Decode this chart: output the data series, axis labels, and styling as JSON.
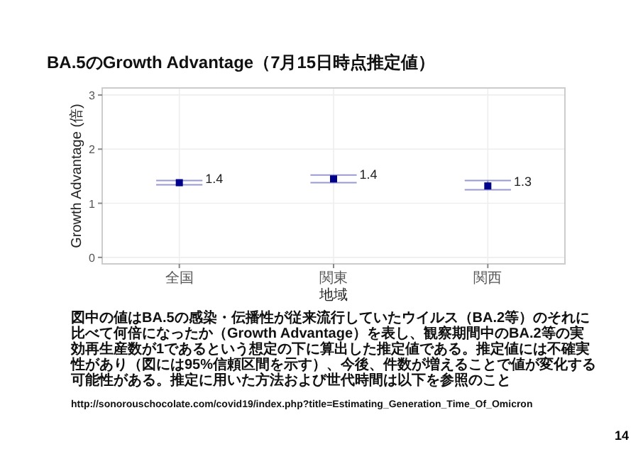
{
  "chart_data": {
    "type": "scatter",
    "title": "BA.5のGrowth Advantage（7月15日時点推定値）",
    "xlabel": "地域",
    "ylabel": "Growth Advantage (倍)",
    "categories": [
      "全国",
      "関東",
      "関西"
    ],
    "series": [
      {
        "color": "#00008b",
        "values": [
          1.38,
          1.45,
          1.32
        ],
        "errors": [
          [
            1.34,
            1.42
          ],
          [
            1.38,
            1.52
          ],
          [
            1.25,
            1.42
          ]
        ],
        "value_labels": [
          "1.4",
          "1.4",
          "1.3"
        ]
      }
    ],
    "ylim": [
      -0.12,
      3.13
    ],
    "yticks": [
      0,
      1,
      2,
      3
    ],
    "grid": true,
    "marker": "square",
    "annotations": [
      "図中の値はBA.5の感染・伝播性が従来流行していたウイルス（BA.2等）のそれに比べて何倍になったか（Growth Advantage）を表し、観察期間中のBA.2等の実効再生産数が1であるという想定の下に算出した推定値である。推定値には不確実性があり（図には95%信頼区間を示す）、今後、件数が増えることで値が変化する可能性がある。推定に用いた方法および世代時間は以下を参照のこと",
      "http://sonorouschocolate.com/covid19/index.php?title=Estimating_Generation_Time_Of_Omicron",
      "14"
    ]
  }
}
